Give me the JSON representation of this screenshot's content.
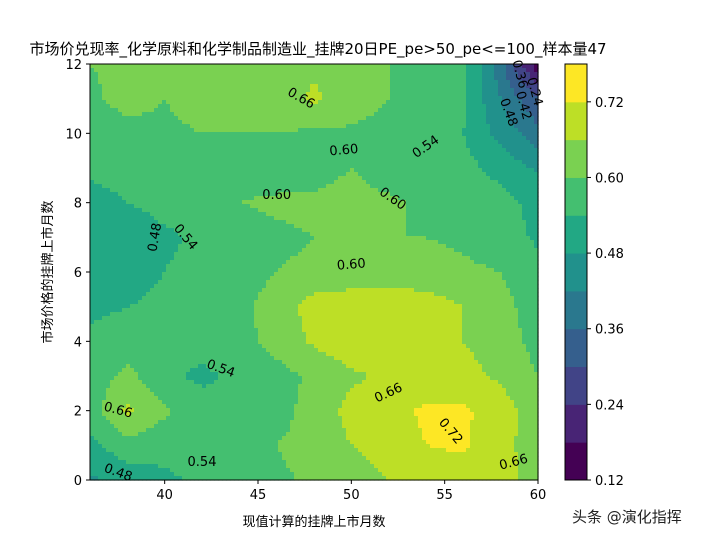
{
  "chart_data": {
    "type": "heatmap",
    "subtype": "filled-contour",
    "title": "市场价兑现率_化学原料和化学制品制造业_挂牌20日PE_pe>50_pe<=100_样本量47",
    "xlabel": "现值计算的挂牌上市月数",
    "ylabel": "市场价格的挂牌上市月数",
    "xlim": [
      36,
      60
    ],
    "ylim": [
      0,
      12
    ],
    "xticks": [
      40,
      45,
      50,
      55,
      60
    ],
    "yticks": [
      0,
      2,
      4,
      6,
      8,
      10,
      12
    ],
    "colormap": "viridis",
    "levels": [
      0.12,
      0.18,
      0.24,
      0.3,
      0.36,
      0.42,
      0.48,
      0.54,
      0.6,
      0.66,
      0.72,
      0.78
    ],
    "colorbar_ticks": [
      "0.12",
      "0.24",
      "0.36",
      "0.48",
      "0.60",
      "0.72"
    ],
    "colors": [
      "#440154",
      "#482475",
      "#414487",
      "#355f8d",
      "#2a788e",
      "#21918c",
      "#22a884",
      "#44bf70",
      "#7ad151",
      "#bddf26",
      "#fde725"
    ],
    "x": [
      36,
      38,
      40,
      42,
      44,
      46,
      48,
      50,
      52,
      54,
      56,
      58,
      60
    ],
    "y": [
      0,
      1,
      2,
      3,
      4,
      5,
      6,
      7,
      8,
      9,
      10,
      11,
      12
    ],
    "z": [
      [
        0.47,
        0.5,
        0.53,
        0.55,
        0.57,
        0.59,
        0.61,
        0.63,
        0.66,
        0.68,
        0.69,
        0.67,
        0.65
      ],
      [
        0.52,
        0.58,
        0.56,
        0.56,
        0.58,
        0.6,
        0.62,
        0.66,
        0.69,
        0.72,
        0.73,
        0.68,
        0.63
      ],
      [
        0.57,
        0.67,
        0.61,
        0.56,
        0.56,
        0.58,
        0.62,
        0.68,
        0.7,
        0.73,
        0.73,
        0.69,
        0.62
      ],
      [
        0.56,
        0.62,
        0.55,
        0.53,
        0.55,
        0.58,
        0.61,
        0.65,
        0.67,
        0.68,
        0.68,
        0.65,
        0.6
      ],
      [
        0.55,
        0.56,
        0.56,
        0.56,
        0.58,
        0.62,
        0.67,
        0.7,
        0.7,
        0.68,
        0.66,
        0.63,
        0.58
      ],
      [
        0.53,
        0.54,
        0.55,
        0.57,
        0.59,
        0.62,
        0.69,
        0.7,
        0.71,
        0.69,
        0.66,
        0.62,
        0.57
      ],
      [
        0.51,
        0.52,
        0.54,
        0.56,
        0.58,
        0.6,
        0.61,
        0.62,
        0.62,
        0.62,
        0.61,
        0.6,
        0.56
      ],
      [
        0.48,
        0.5,
        0.53,
        0.55,
        0.57,
        0.59,
        0.6,
        0.6,
        0.6,
        0.6,
        0.59,
        0.57,
        0.53
      ],
      [
        0.52,
        0.54,
        0.56,
        0.57,
        0.6,
        0.61,
        0.61,
        0.62,
        0.61,
        0.59,
        0.58,
        0.56,
        0.52
      ],
      [
        0.55,
        0.56,
        0.57,
        0.59,
        0.58,
        0.57,
        0.58,
        0.6,
        0.57,
        0.54,
        0.56,
        0.52,
        0.47
      ],
      [
        0.57,
        0.58,
        0.59,
        0.6,
        0.6,
        0.6,
        0.59,
        0.59,
        0.58,
        0.57,
        0.54,
        0.46,
        0.38
      ],
      [
        0.59,
        0.62,
        0.6,
        0.62,
        0.6,
        0.63,
        0.67,
        0.63,
        0.6,
        0.58,
        0.55,
        0.42,
        0.3
      ],
      [
        0.6,
        0.61,
        0.62,
        0.62,
        0.61,
        0.64,
        0.65,
        0.62,
        0.6,
        0.58,
        0.56,
        0.38,
        0.14
      ]
    ],
    "contour_labels": [
      {
        "text": "0.66",
        "x": 47.3,
        "y": 11.0,
        "angle": 30
      },
      {
        "text": "0.60",
        "x": 49.6,
        "y": 9.5,
        "angle": -5
      },
      {
        "text": "0.54",
        "x": 54.0,
        "y": 9.6,
        "angle": -35
      },
      {
        "text": "0.60",
        "x": 46.0,
        "y": 8.2,
        "angle": 0
      },
      {
        "text": "0.60",
        "x": 52.2,
        "y": 8.1,
        "angle": 35
      },
      {
        "text": "0.54",
        "x": 41.1,
        "y": 7.0,
        "angle": 50
      },
      {
        "text": "0.48",
        "x": 39.5,
        "y": 7.0,
        "angle": -80
      },
      {
        "text": "0.60",
        "x": 50.0,
        "y": 6.2,
        "angle": -5
      },
      {
        "text": "0.54",
        "x": 43.0,
        "y": 3.2,
        "angle": 20
      },
      {
        "text": "0.66",
        "x": 52.0,
        "y": 2.5,
        "angle": -25
      },
      {
        "text": "0.66",
        "x": 37.5,
        "y": 2.0,
        "angle": 15
      },
      {
        "text": "0.72",
        "x": 55.3,
        "y": 1.4,
        "angle": 50
      },
      {
        "text": "0.54",
        "x": 42.0,
        "y": 0.5,
        "angle": 0
      },
      {
        "text": "0.66",
        "x": 58.7,
        "y": 0.5,
        "angle": -15
      },
      {
        "text": "0.48",
        "x": 37.5,
        "y": 0.2,
        "angle": 20
      },
      {
        "text": "0.48",
        "x": 58.4,
        "y": 10.6,
        "angle": 70
      },
      {
        "text": "0.42",
        "x": 59.2,
        "y": 10.8,
        "angle": 75
      },
      {
        "text": "0.36",
        "x": 59.0,
        "y": 11.7,
        "angle": 75
      },
      {
        "text": "0.24",
        "x": 59.8,
        "y": 11.2,
        "angle": 75
      }
    ]
  },
  "watermark": "头条 @演化指挥"
}
